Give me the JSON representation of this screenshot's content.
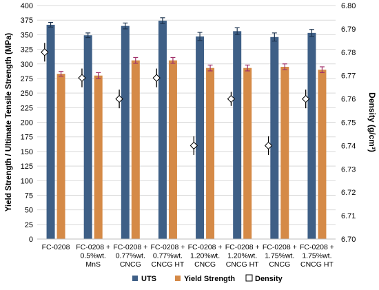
{
  "chart_data": {
    "type": "bar",
    "categories": [
      [
        "FC-0208"
      ],
      [
        "FC-0208 +",
        "0.5%wt.",
        "MnS"
      ],
      [
        "FC-0208 +",
        "0.77%wt.",
        "CNCG"
      ],
      [
        "FC-0208 +",
        "0.77%wt.",
        "CNCG HT"
      ],
      [
        "FC-0208 +",
        "1.20%wt.",
        "CNCG"
      ],
      [
        "FC-0208 +",
        "1.20%wt.",
        "CNCG HT"
      ],
      [
        "FC-0208 +",
        "1.75%wt.",
        "CNCG"
      ],
      [
        "FC-0208 +",
        "1.75%wt.",
        "CNCG HT"
      ]
    ],
    "ylabel": "Yield Strength / Ultimate Tensile Strength (MPa)",
    "ylabel_right": "Density (g/cm³)",
    "ylim": [
      0,
      400
    ],
    "yticks": [
      0,
      25,
      50,
      75,
      100,
      125,
      150,
      175,
      200,
      225,
      250,
      275,
      300,
      325,
      350,
      375,
      400
    ],
    "ylim_right": [
      6.7,
      6.8
    ],
    "yticks_right": [
      "6.70",
      "6.71",
      "6.72",
      "6.73",
      "6.74",
      "6.75",
      "6.76",
      "6.77",
      "6.78",
      "6.79",
      "6.80"
    ],
    "grid": true,
    "legend_position": "bottom",
    "series": [
      {
        "name": "UTS",
        "kind": "bar",
        "axis": "left",
        "color": "#3e5f86",
        "values": [
          367,
          349,
          365,
          374,
          347,
          356,
          346,
          353
        ],
        "errors": [
          4,
          4,
          5,
          5,
          7,
          6,
          7,
          6
        ]
      },
      {
        "name": "Yield Strength",
        "kind": "bar",
        "axis": "left",
        "color": "#d58a47",
        "values": [
          283,
          280,
          306,
          306,
          293,
          293,
          295,
          290
        ],
        "errors": [
          4,
          5,
          5,
          5,
          5,
          5,
          5,
          5
        ]
      },
      {
        "name": "Density",
        "kind": "marker",
        "axis": "right",
        "color": "#ffffff",
        "values": [
          6.78,
          6.769,
          6.76,
          6.769,
          6.74,
          6.76,
          6.74,
          6.76
        ],
        "errors": [
          0.004,
          0.004,
          0.004,
          0.004,
          0.004,
          0.003,
          0.004,
          0.004
        ]
      }
    ]
  }
}
